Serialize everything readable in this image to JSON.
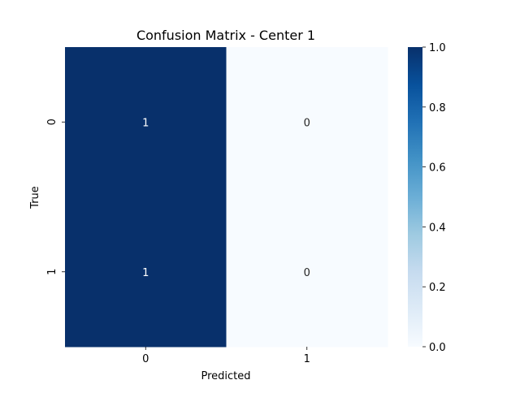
{
  "chart_data": {
    "type": "heatmap",
    "title": "Confusion Matrix - Center 1",
    "xlabel": "Predicted",
    "ylabel": "True",
    "x_categories": [
      "0",
      "1"
    ],
    "y_categories": [
      "0",
      "1"
    ],
    "values": [
      [
        1,
        0
      ],
      [
        1,
        0
      ]
    ],
    "annotations": [
      [
        "1",
        "0"
      ],
      [
        "1",
        "0"
      ]
    ],
    "colorbar": {
      "range": [
        0.0,
        1.0
      ],
      "ticks": [
        "0.0",
        "0.2",
        "0.4",
        "0.6",
        "0.8",
        "1.0"
      ],
      "colormap": "Blues",
      "low_color": "#f7fbff",
      "high_color": "#08306b"
    },
    "grid": false,
    "legend": "none"
  }
}
